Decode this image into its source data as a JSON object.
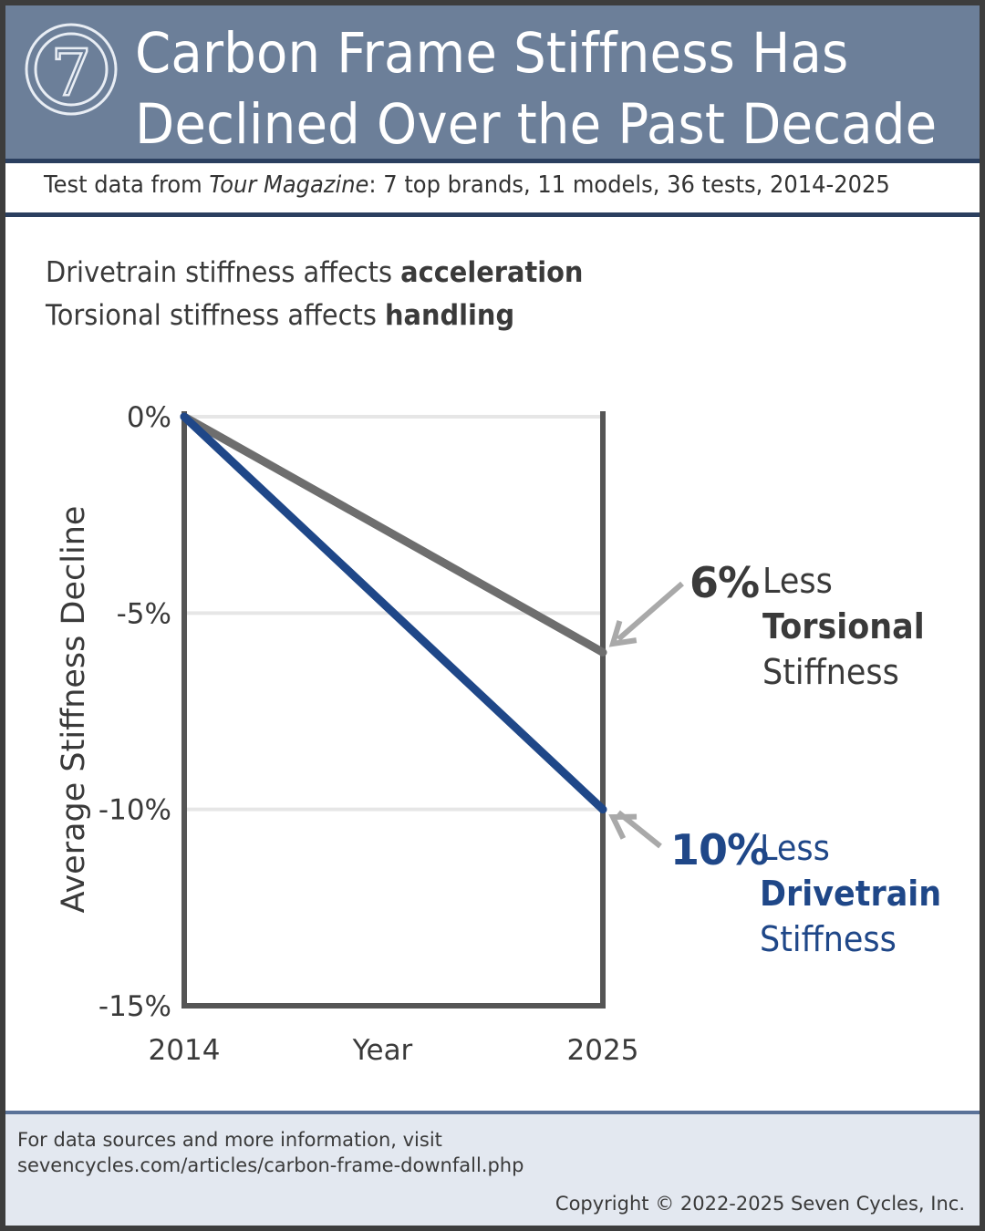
{
  "header": {
    "logo_icon": "seven-logo-icon",
    "logo_glyph": "7",
    "title_line1": "Carbon Frame Stiffness Has",
    "title_line2": "Declined Over the Past Decade",
    "bg_color": "#6c7f99"
  },
  "subtitle": {
    "prefix": "Test data from ",
    "source": "Tour Magazine",
    "suffix": ":  7 top brands, 11 models, 36 tests, 2014-2025"
  },
  "intro": {
    "line1_prefix": "Drivetrain stiffness affects ",
    "line1_bold": "acceleration",
    "line2_prefix": "Torsional stiffness affects ",
    "line2_bold": "handling"
  },
  "chart_data": {
    "type": "line",
    "title": "Carbon Frame Stiffness Has Declined Over the Past Decade",
    "xlabel": "Year",
    "ylabel": "Average Stiffness Decline",
    "x": [
      2014,
      2025
    ],
    "x_tick_labels": [
      "2014",
      "2025"
    ],
    "ylim": [
      -15,
      0
    ],
    "y_ticks": [
      0,
      -5,
      -10,
      -15
    ],
    "y_tick_labels": [
      "0%",
      "-5%",
      "-10%",
      "-15%"
    ],
    "grid": true,
    "series": [
      {
        "name": "Torsional Stiffness",
        "values": [
          0,
          -6
        ],
        "color": "#6e6e6e"
      },
      {
        "name": "Drivetrain Stiffness",
        "values": [
          0,
          -10
        ],
        "color": "#1f4788"
      }
    ],
    "annotations": [
      {
        "series": "Torsional Stiffness",
        "percent": "6%",
        "word1": "Less",
        "word2": "Torsional",
        "word3": "Stiffness",
        "color": "#3a3a3a",
        "arrow_color": "#a9a9a9"
      },
      {
        "series": "Drivetrain Stiffness",
        "percent": "10%",
        "word1": "Less",
        "word2": "Drivetrain",
        "word3": "Stiffness",
        "color": "#1f4788",
        "arrow_color": "#a9a9a9"
      }
    ]
  },
  "footer": {
    "info_line1": "For data sources and more information, visit",
    "info_line2": "sevencycles.com/articles/carbon-frame-downfall.php",
    "copyright": "Copyright © 2022-2025 Seven Cycles, Inc."
  }
}
